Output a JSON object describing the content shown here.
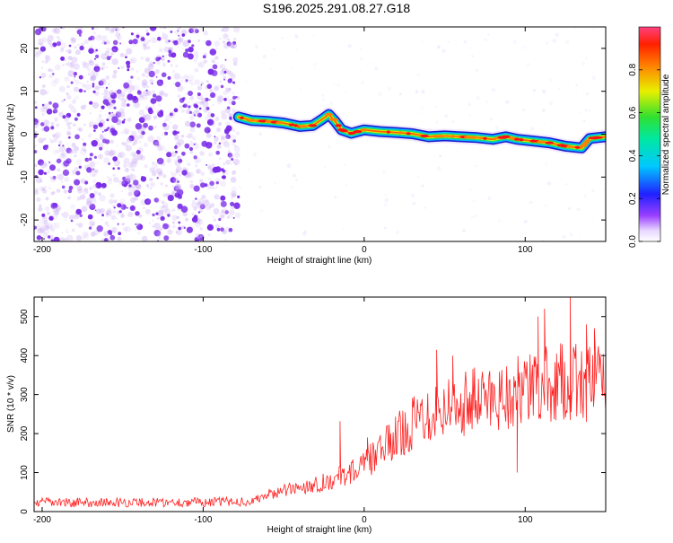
{
  "title": "S196.2025.291.08.27.G18",
  "colors": {
    "axis": "#000000",
    "snr_line": "#ff2020",
    "scatter_point": "#7a2be8",
    "scatter_light": "#c8a8f4"
  },
  "chart_data": [
    {
      "type": "heatmap",
      "xlabel": "Height of straight line (km)",
      "ylabel": "Frequency (Hz)",
      "xlim": [
        -205,
        150
      ],
      "ylim": [
        -25,
        25
      ],
      "xticks": [
        -200,
        -100,
        0,
        100
      ],
      "yticks": [
        -20,
        -10,
        0,
        10,
        20
      ],
      "grid": false,
      "colorbar": {
        "label": "Normalized spectral amplitude",
        "range": [
          0,
          1
        ],
        "ticks": [
          "0.0",
          "0.2",
          "0.4",
          "0.6",
          "0.8"
        ],
        "tick_values": [
          0,
          0.2,
          0.4,
          0.6,
          0.8
        ]
      },
      "noise_region": {
        "x_from": -205,
        "x_to": -78
      },
      "ridge": [
        {
          "x": -78,
          "y": 4.0
        },
        {
          "x": -70,
          "y": 3.2
        },
        {
          "x": -60,
          "y": 3.0
        },
        {
          "x": -50,
          "y": 2.6
        },
        {
          "x": -40,
          "y": 1.8
        },
        {
          "x": -32,
          "y": 2.0
        },
        {
          "x": -26,
          "y": 3.5
        },
        {
          "x": -22,
          "y": 4.6
        },
        {
          "x": -18,
          "y": 3.0
        },
        {
          "x": -14,
          "y": 1.0
        },
        {
          "x": -8,
          "y": 0.2
        },
        {
          "x": 0,
          "y": 1.0
        },
        {
          "x": 10,
          "y": 0.6
        },
        {
          "x": 20,
          "y": 0.4
        },
        {
          "x": 30,
          "y": 0.1
        },
        {
          "x": 40,
          "y": -0.6
        },
        {
          "x": 50,
          "y": -0.4
        },
        {
          "x": 60,
          "y": -0.6
        },
        {
          "x": 70,
          "y": -0.8
        },
        {
          "x": 80,
          "y": -1.2
        },
        {
          "x": 88,
          "y": -0.6
        },
        {
          "x": 95,
          "y": -1.2
        },
        {
          "x": 105,
          "y": -1.6
        },
        {
          "x": 115,
          "y": -2.0
        },
        {
          "x": 125,
          "y": -2.8
        },
        {
          "x": 135,
          "y": -3.2
        },
        {
          "x": 140,
          "y": -1.0
        },
        {
          "x": 150,
          "y": -0.6
        }
      ]
    },
    {
      "type": "line",
      "xlabel": "Height of straight line (km)",
      "ylabel": "SNR (10 * v/v)",
      "xlim": [
        -205,
        150
      ],
      "ylim": [
        0,
        550
      ],
      "xticks": [
        -200,
        -100,
        0,
        100
      ],
      "yticks": [
        0,
        100,
        200,
        300,
        400,
        500
      ],
      "grid": false,
      "series": [
        {
          "x_step": 2,
          "trend": [
            {
              "x": -205,
              "y": 22
            },
            {
              "x": -150,
              "y": 22
            },
            {
              "x": -100,
              "y": 23
            },
            {
              "x": -70,
              "y": 25
            },
            {
              "x": -60,
              "y": 42
            },
            {
              "x": -40,
              "y": 60
            },
            {
              "x": -20,
              "y": 78
            },
            {
              "x": -10,
              "y": 95
            },
            {
              "x": 0,
              "y": 115
            },
            {
              "x": 10,
              "y": 150
            },
            {
              "x": 20,
              "y": 185
            },
            {
              "x": 30,
              "y": 220
            },
            {
              "x": 40,
              "y": 250
            },
            {
              "x": 60,
              "y": 270
            },
            {
              "x": 80,
              "y": 285
            },
            {
              "x": 100,
              "y": 300
            },
            {
              "x": 120,
              "y": 320
            },
            {
              "x": 150,
              "y": 320
            }
          ],
          "spikes": [
            {
              "x": -15,
              "y": 232
            },
            {
              "x": 2,
              "y": 190
            },
            {
              "x": 45,
              "y": 415
            },
            {
              "x": 55,
              "y": 400
            },
            {
              "x": 95,
              "y": 100
            },
            {
              "x": 108,
              "y": 500
            },
            {
              "x": 112,
              "y": 520
            },
            {
              "x": 128,
              "y": 560
            },
            {
              "x": 138,
              "y": 480
            },
            {
              "x": 143,
              "y": 470
            }
          ]
        }
      ]
    }
  ]
}
